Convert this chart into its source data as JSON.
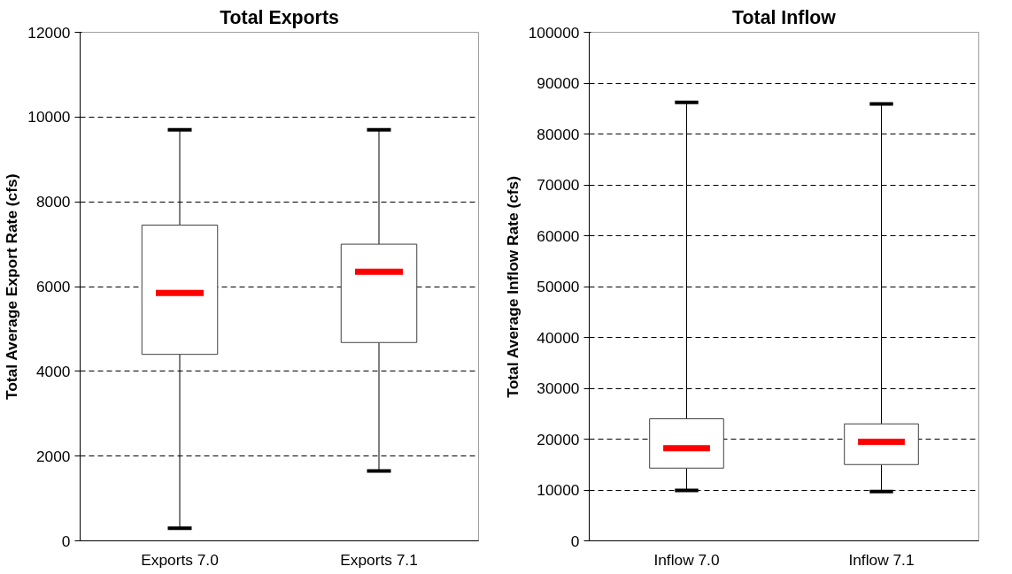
{
  "chart_data": [
    {
      "type": "box",
      "title": "Total Exports",
      "ylabel": "Total Average Export Rate (cfs)",
      "categories": [
        "Exports 7.0",
        "Exports 7.1"
      ],
      "ylim": [
        0,
        12000
      ],
      "yticks": [
        0,
        2000,
        4000,
        6000,
        8000,
        10000,
        12000
      ],
      "grid": "y",
      "series": [
        {
          "color": "#ffffff",
          "boxes": [
            {
              "low": 300,
              "q1": 4400,
              "median": 5850,
              "q3": 7450,
              "high": 9700
            },
            {
              "low": 1650,
              "q1": 4680,
              "median": 6350,
              "q3": 7000,
              "high": 9700
            }
          ]
        }
      ]
    },
    {
      "type": "box",
      "title": "Total Inflow",
      "ylabel": "Total Average Inflow Rate (cfs)",
      "categories": [
        "Inflow 7.0",
        "Inflow 7.1"
      ],
      "ylim": [
        0,
        100000
      ],
      "yticks": [
        0,
        10000,
        20000,
        30000,
        40000,
        50000,
        60000,
        70000,
        80000,
        90000,
        100000
      ],
      "grid": "y",
      "series": [
        {
          "color": "#ffffff",
          "boxes": [
            {
              "low": 9900,
              "q1": 14300,
              "median": 18200,
              "q3": 24000,
              "high": 86200
            },
            {
              "low": 9700,
              "q1": 15000,
              "median": 19500,
              "q3": 23000,
              "high": 85900
            }
          ]
        }
      ]
    }
  ]
}
